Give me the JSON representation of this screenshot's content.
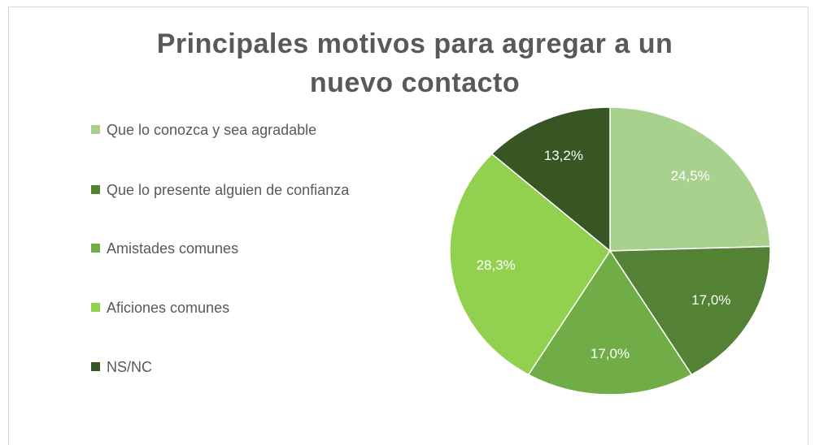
{
  "chart_data": {
    "type": "pie",
    "title": "Principales motivos para agregar a un nuevo contacto",
    "categories": [
      "Que lo conozca y sea agradable",
      "Que lo presente alguien de confianza",
      "Amistades comunes",
      "Aficiones comunes",
      "NS/NC"
    ],
    "values": [
      24.5,
      17.0,
      17.0,
      28.3,
      13.2
    ],
    "value_labels": [
      "24,5%",
      "17,0%",
      "17,0%",
      "28,3%",
      "13,2%"
    ],
    "colors": [
      "#a9d18e",
      "#548235",
      "#70ad47",
      "#92d050",
      "#375623"
    ],
    "legend": "left"
  }
}
